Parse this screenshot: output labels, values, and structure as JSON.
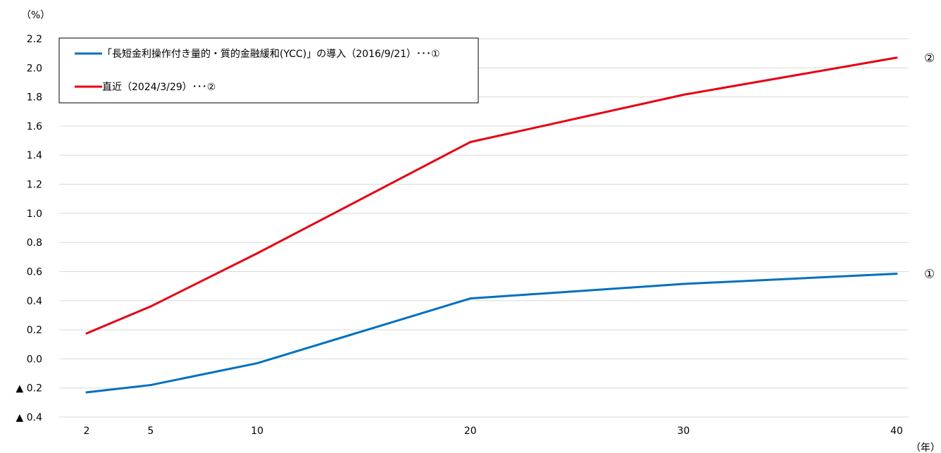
{
  "chart_data": {
    "type": "line",
    "y_unit_label": "（%）",
    "x_unit_label": "（年）",
    "x": [
      2,
      5,
      10,
      20,
      30,
      40
    ],
    "x_tick_labels": [
      "2",
      "5",
      "10",
      "20",
      "30",
      "40"
    ],
    "xlim": [
      0,
      40
    ],
    "ylim": [
      -0.4,
      2.2
    ],
    "y_ticks": [
      -0.4,
      -0.2,
      0.0,
      0.2,
      0.4,
      0.6,
      0.8,
      1.0,
      1.2,
      1.4,
      1.6,
      1.8,
      2.0,
      2.2
    ],
    "y_tick_labels": [
      "▲ 0.4",
      "▲ 0.2",
      "0.0",
      "0.2",
      "0.4",
      "0.6",
      "0.8",
      "1.0",
      "1.2",
      "1.4",
      "1.6",
      "1.8",
      "2.0",
      "2.2"
    ],
    "grid": true,
    "legend_position": "top-left",
    "series": [
      {
        "name": "「長短金利操作付き量的・質的金融緩和(YCC)」の導入（2016/9/21）･･･①",
        "end_label": "①",
        "color": "#0070c0",
        "values": [
          -0.23,
          -0.18,
          -0.03,
          0.415,
          0.515,
          0.585
        ]
      },
      {
        "name": "直近（2024/3/29）･･･②",
        "end_label": "②",
        "color": "#e60012",
        "values": [
          0.175,
          0.36,
          0.725,
          1.49,
          1.815,
          2.07
        ]
      }
    ]
  }
}
